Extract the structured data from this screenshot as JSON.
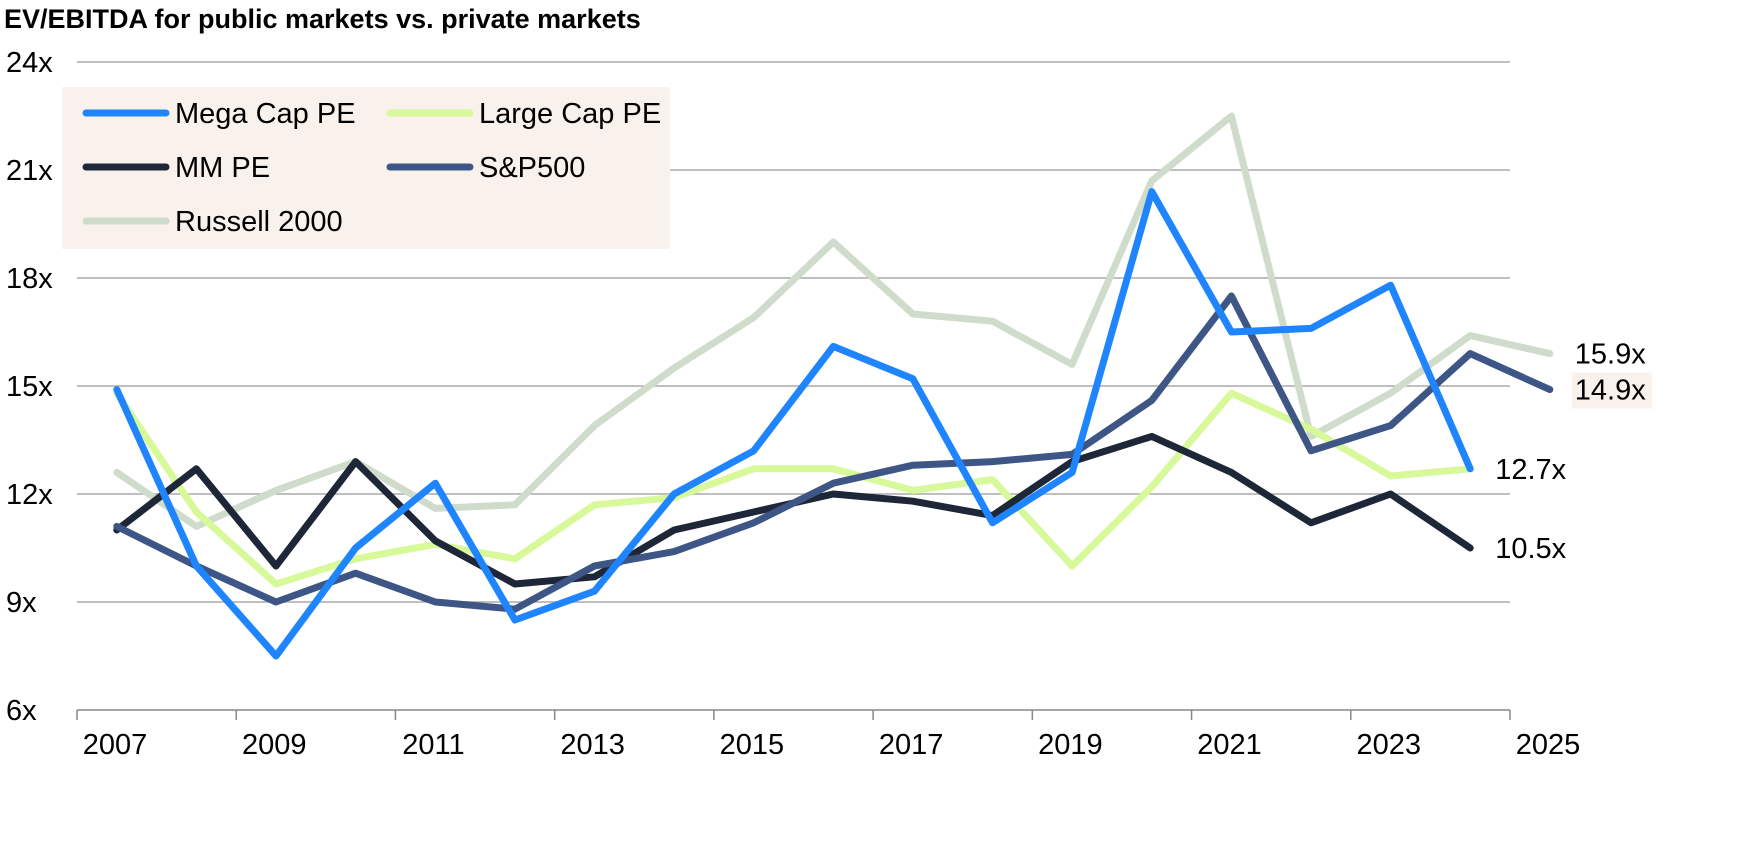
{
  "chart_data": {
    "type": "line",
    "title": "EV/EBITDA for public markets vs. private markets",
    "xlabel": "",
    "ylabel": "",
    "ylim": [
      6,
      24
    ],
    "xlim": [
      2007,
      2025
    ],
    "grid": true,
    "legend_position": "top-left",
    "y_ticks": [
      "6x",
      "9x",
      "12x",
      "15x",
      "18x",
      "21x",
      "24x"
    ],
    "y_tick_values": [
      6,
      9,
      12,
      15,
      18,
      21,
      24
    ],
    "x_ticks": [
      "2007",
      "2009",
      "2011",
      "2013",
      "2015",
      "2017",
      "2019",
      "2021",
      "2023",
      "2025"
    ],
    "x_tick_values": [
      2007,
      2009,
      2011,
      2013,
      2015,
      2017,
      2019,
      2021,
      2023,
      2025
    ],
    "series": [
      {
        "name": "Russell 2000",
        "color": "#d0dccb",
        "x": [
          2007.5,
          2008.5,
          2009.5,
          2010.5,
          2011.5,
          2012.5,
          2013.5,
          2014.5,
          2015.5,
          2016.5,
          2017.5,
          2018.5,
          2019.5,
          2020.5,
          2021.5,
          2022.5,
          2023.5,
          2024.5,
          2025.5
        ],
        "values": [
          12.6,
          11.1,
          12.1,
          12.9,
          11.6,
          11.7,
          13.9,
          15.5,
          16.9,
          19.0,
          17.0,
          16.8,
          15.6,
          20.7,
          22.5,
          13.6,
          14.8,
          16.4,
          15.9
        ],
        "end_label": "15.9x"
      },
      {
        "name": "Large Cap PE",
        "color": "#d8f99a",
        "x": [
          2007.5,
          2008.5,
          2009.5,
          2010.5,
          2011.5,
          2012.5,
          2013.5,
          2014.5,
          2015.5,
          2016.5,
          2017.5,
          2018.5,
          2019.5,
          2020.5,
          2021.5,
          2022.5,
          2023.5,
          2024.5
        ],
        "values": [
          14.8,
          11.5,
          9.5,
          10.2,
          10.6,
          10.2,
          11.7,
          11.9,
          12.7,
          12.7,
          12.1,
          12.4,
          10.0,
          12.2,
          14.8,
          13.8,
          12.5,
          12.7
        ],
        "end_label": ""
      },
      {
        "name": "MM PE",
        "color": "#1d2738",
        "x": [
          2007.5,
          2008.5,
          2009.5,
          2010.5,
          2011.5,
          2012.5,
          2013.5,
          2014.5,
          2015.5,
          2016.5,
          2017.5,
          2018.5,
          2019.5,
          2020.5,
          2021.5,
          2022.5,
          2023.5,
          2024.5
        ],
        "values": [
          11.0,
          12.7,
          10.0,
          12.9,
          10.7,
          9.5,
          9.7,
          11.0,
          11.5,
          12.0,
          11.8,
          11.4,
          12.9,
          13.6,
          12.6,
          11.2,
          12.0,
          10.5
        ],
        "end_label": "10.5x"
      },
      {
        "name": "S&P500",
        "color": "#3e5685",
        "x": [
          2007.5,
          2008.5,
          2009.5,
          2010.5,
          2011.5,
          2012.5,
          2013.5,
          2014.5,
          2015.5,
          2016.5,
          2017.5,
          2018.5,
          2019.5,
          2020.5,
          2021.5,
          2022.5,
          2023.5,
          2024.5,
          2025.5
        ],
        "values": [
          11.1,
          10.0,
          9.0,
          9.8,
          9.0,
          8.8,
          10.0,
          10.4,
          11.2,
          12.3,
          12.8,
          12.9,
          13.1,
          14.6,
          17.5,
          13.2,
          13.9,
          15.9,
          14.9
        ],
        "end_label": "14.9x"
      },
      {
        "name": "Mega Cap PE",
        "color": "#1f85ff",
        "x": [
          2007.5,
          2008.5,
          2009.5,
          2010.5,
          2011.5,
          2012.5,
          2013.5,
          2014.5,
          2015.5,
          2016.5,
          2017.5,
          2018.5,
          2019.5,
          2020.5,
          2021.5,
          2022.5,
          2023.5,
          2024.5
        ],
        "values": [
          14.9,
          10.0,
          7.5,
          10.5,
          12.3,
          8.5,
          9.3,
          12.0,
          13.2,
          16.1,
          15.2,
          11.2,
          12.6,
          20.4,
          16.5,
          16.6,
          17.8,
          12.7
        ],
        "end_label": "12.7x"
      }
    ],
    "legend": [
      {
        "name": "Mega Cap PE",
        "color": "#1f85ff"
      },
      {
        "name": "Large Cap PE",
        "color": "#d8f99a"
      },
      {
        "name": "MM PE",
        "color": "#1d2738"
      },
      {
        "name": "S&P500",
        "color": "#3e5685"
      },
      {
        "name": "Russell 2000",
        "color": "#d0dccb"
      }
    ],
    "legend_background": "#f9f1ec",
    "gridline_color": "#aaaaaa"
  }
}
